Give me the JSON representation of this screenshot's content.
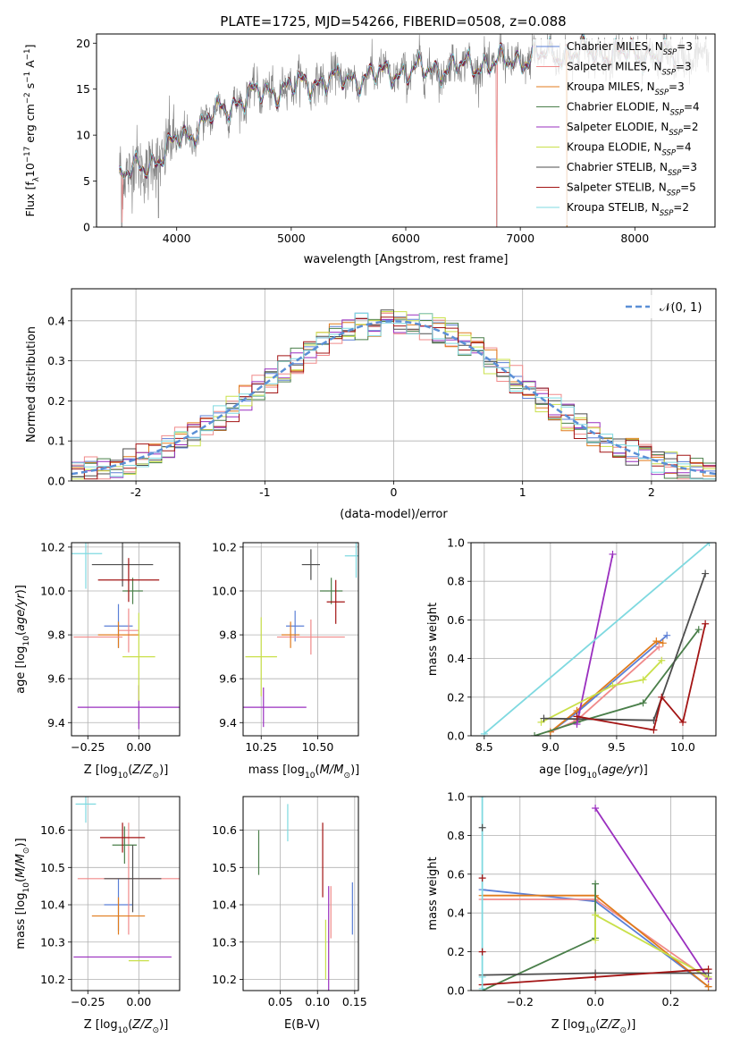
{
  "figure": {
    "title": "PLATE=1725, MJD=54266, FIBERID=0508, z=0.088"
  },
  "colors": {
    "Chabrier MILES": "#5b7fd6",
    "Salpeter MILES": "#f08a8a",
    "Kroupa MILES": "#e07b1c",
    "Chabrier ELODIE": "#4a7f4a",
    "Salpeter ELODIE": "#9a2fbf",
    "Kroupa ELODIE": "#c9e04a",
    "Chabrier STELIB": "#4d4d4d",
    "Salpeter STELIB": "#a31414",
    "Kroupa STELIB": "#7fd9e0",
    "gauss": "#5b8fd6"
  },
  "chart_data": [
    {
      "id": "spectrum",
      "type": "line",
      "title": "PLATE=1725, MJD=54266, FIBERID=0508, z=0.088",
      "xlabel": "wavelength [Angstrom, rest frame]",
      "ylabel": "Flux [f_λ 10^-17 erg cm^-2 s^-1 A^-1]",
      "xlim": [
        3300,
        8700
      ],
      "ylim": [
        0,
        21
      ],
      "xticks": [
        4000,
        5000,
        6000,
        7000,
        8000
      ],
      "yticks": [
        0,
        5,
        10,
        15,
        20
      ],
      "legend_position": "top-right",
      "legend": [
        {
          "name": "Chabrier MILES",
          "nssp": "3"
        },
        {
          "name": "Salpeter MILES",
          "nssp": "3"
        },
        {
          "name": "Kroupa MILES",
          "nssp": "3"
        },
        {
          "name": "Chabrier ELODIE",
          "nssp": "4"
        },
        {
          "name": "Salpeter ELODIE",
          "nssp": "2"
        },
        {
          "name": "Kroupa ELODIE",
          "nssp": "4"
        },
        {
          "name": "Chabrier STELIB",
          "nssp": "3"
        },
        {
          "name": "Salpeter STELIB",
          "nssp": "5"
        },
        {
          "name": "Kroupa STELIB",
          "nssp": "2"
        }
      ],
      "continuum": {
        "x": [
          3500,
          3700,
          3900,
          4000,
          4100,
          4300,
          4500,
          4700,
          4900,
          5100,
          5300,
          5500,
          5700,
          5900,
          6100,
          6300,
          6500,
          6700,
          6900,
          7100,
          7300,
          7500,
          7700,
          7900,
          8100,
          8300
        ],
        "y": [
          5.5,
          6.5,
          8.0,
          9.5,
          10.0,
          12.0,
          13.5,
          14.5,
          15.0,
          15.5,
          16.0,
          16.0,
          16.5,
          16.8,
          17.0,
          17.2,
          17.5,
          17.8,
          18.0,
          18.5,
          18.8,
          19.0,
          19.0,
          18.8,
          18.7,
          18.5
        ]
      },
      "model_range": [
        3500,
        8350
      ]
    },
    {
      "id": "residuals",
      "type": "bar",
      "xlabel": "(data-model)/error",
      "ylabel": "Normed distribution",
      "xlim": [
        -2.5,
        2.5
      ],
      "ylim": [
        0,
        0.48
      ],
      "xticks": [
        -2,
        -1,
        0,
        1,
        2
      ],
      "yticks": [
        0.0,
        0.1,
        0.2,
        0.3,
        0.4
      ],
      "bin_width": 0.1,
      "legend": "𝒩(0, 1)",
      "legend_position": "top-right",
      "gaussian": {
        "mean": 0,
        "sigma": 1
      }
    },
    {
      "id": "age-Z",
      "type": "scatter",
      "xlabel": "Z [log10(Z/Z⊙)]",
      "ylabel": "age  [log10(age/yr)]",
      "xlim": [
        -0.33,
        0.2
      ],
      "ylim": [
        9.34,
        10.22
      ],
      "xticks": [
        -0.25,
        0.0
      ],
      "xticklabels": [
        "−0.25",
        "0.00"
      ],
      "yticks": [
        9.4,
        9.6,
        9.8,
        10.0,
        10.2
      ],
      "points": [
        {
          "series": "Chabrier MILES",
          "x": -0.1,
          "y": 9.84,
          "xerr": 0.07,
          "yerr": 0.1
        },
        {
          "series": "Salpeter MILES",
          "x": -0.05,
          "y": 9.82,
          "xerr": 0.05,
          "yerr": 0.1
        },
        {
          "series": "Kroupa MILES",
          "x": -0.1,
          "y": 9.8,
          "xerr": 0.1,
          "yerr": 0.06
        },
        {
          "series": "Chabrier ELODIE",
          "x": -0.03,
          "y": 10.0,
          "xerr": 0.05,
          "yerr": 0.06
        },
        {
          "series": "Salpeter ELODIE",
          "x": 0.0,
          "y": 9.47,
          "xerr": 0.3,
          "yerr": 0.1
        },
        {
          "series": "Kroupa ELODIE",
          "x": 0.0,
          "y": 9.7,
          "xerr": 0.08,
          "yerr": 0.2
        },
        {
          "series": "Chabrier STELIB",
          "x": -0.08,
          "y": 10.12,
          "xerr": 0.15,
          "yerr": 0.1
        },
        {
          "series": "Salpeter STELIB",
          "x": -0.05,
          "y": 10.05,
          "xerr": 0.15,
          "yerr": 0.1
        },
        {
          "series": "Kroupa STELIB",
          "x": -0.26,
          "y": 10.17,
          "xerr": 0.08,
          "yerr": 0.16
        },
        {
          "series": "Salpeter MILES",
          "x": -0.2,
          "y": 9.79,
          "xerr": 0.12,
          "yerr": 0.0
        }
      ]
    },
    {
      "id": "age-mass",
      "type": "scatter",
      "xlabel": "mass [log10(M/M⊙)]",
      "ylabel": "",
      "xlim": [
        10.17,
        10.68
      ],
      "ylim": [
        9.34,
        10.22
      ],
      "xticks": [
        10.25,
        10.5
      ],
      "xticklabels": [
        "10.25",
        "10.50"
      ],
      "yticks": [
        9.4,
        9.6,
        9.8,
        10.0,
        10.2
      ],
      "points": [
        {
          "series": "Chabrier MILES",
          "x": 10.4,
          "y": 9.84,
          "xerr": 0.04,
          "yerr": 0.07
        },
        {
          "series": "Salpeter MILES",
          "x": 10.47,
          "y": 9.79,
          "xerr": 0.15,
          "yerr": 0.08
        },
        {
          "series": "Kroupa MILES",
          "x": 10.38,
          "y": 9.8,
          "xerr": 0.04,
          "yerr": 0.06
        },
        {
          "series": "Chabrier ELODIE",
          "x": 10.56,
          "y": 10.0,
          "xerr": 0.05,
          "yerr": 0.06
        },
        {
          "series": "Salpeter ELODIE",
          "x": 10.26,
          "y": 9.47,
          "xerr": 0.19,
          "yerr": 0.09
        },
        {
          "series": "Kroupa ELODIE",
          "x": 10.25,
          "y": 9.7,
          "xerr": 0.07,
          "yerr": 0.18
        },
        {
          "series": "Chabrier STELIB",
          "x": 10.47,
          "y": 10.12,
          "xerr": 0.04,
          "yerr": 0.07
        },
        {
          "series": "Salpeter STELIB",
          "x": 10.58,
          "y": 9.95,
          "xerr": 0.04,
          "yerr": 0.1
        },
        {
          "series": "Kroupa STELIB",
          "x": 10.67,
          "y": 10.16,
          "xerr": 0.05,
          "yerr": 0.1
        }
      ]
    },
    {
      "id": "massweight-age",
      "type": "line",
      "xlabel": "age  [log10(age/yr)]",
      "ylabel": "mass weight",
      "xlim": [
        8.4,
        10.25
      ],
      "ylim": [
        0,
        1
      ],
      "xticks": [
        8.5,
        9.0,
        9.5,
        10.0
      ],
      "xticklabels": [
        "8.5",
        "9.0",
        "9.5",
        "10.0"
      ],
      "yticks": [
        0.0,
        0.2,
        0.4,
        0.6,
        0.8,
        1.0
      ],
      "series": [
        {
          "name": "Chabrier MILES",
          "x": [
            9.0,
            9.2,
            9.88
          ],
          "y": [
            0.02,
            0.12,
            0.52
          ]
        },
        {
          "name": "Salpeter MILES",
          "x": [
            9.0,
            9.2,
            9.82
          ],
          "y": [
            0.02,
            0.08,
            0.46
          ]
        },
        {
          "name": "Kroupa MILES",
          "x": [
            9.0,
            9.2,
            9.8,
            9.85
          ],
          "y": [
            0.02,
            0.13,
            0.49,
            0.48
          ]
        },
        {
          "name": "Chabrier ELODIE",
          "x": [
            8.88,
            9.2,
            9.7,
            10.12
          ],
          "y": [
            0.0,
            0.07,
            0.17,
            0.55
          ]
        },
        {
          "name": "Salpeter ELODIE",
          "x": [
            9.2,
            9.47
          ],
          "y": [
            0.06,
            0.94
          ]
        },
        {
          "name": "Kroupa ELODIE",
          "x": [
            8.93,
            9.47,
            9.7,
            9.84
          ],
          "y": [
            0.07,
            0.26,
            0.29,
            0.39
          ]
        },
        {
          "name": "Chabrier STELIB",
          "x": [
            8.95,
            9.78,
            10.17
          ],
          "y": [
            0.09,
            0.08,
            0.84
          ]
        },
        {
          "name": "Salpeter STELIB",
          "x": [
            9.2,
            9.78,
            9.84,
            10.0,
            10.17
          ],
          "y": [
            0.1,
            0.03,
            0.2,
            0.07,
            0.58
          ]
        },
        {
          "name": "Kroupa STELIB",
          "x": [
            8.5,
            10.2
          ],
          "y": [
            0.01,
            1.0
          ]
        }
      ]
    },
    {
      "id": "mass-Z",
      "type": "scatter",
      "xlabel": "Z [log10(Z/Z⊙)]",
      "ylabel": "mass [log10(M/M⊙)]",
      "xlim": [
        -0.33,
        0.2
      ],
      "ylim": [
        10.17,
        10.69
      ],
      "xticks": [
        -0.25,
        0.0
      ],
      "xticklabels": [
        "−0.25",
        "0.00"
      ],
      "yticks": [
        10.2,
        10.3,
        10.4,
        10.5,
        10.6
      ],
      "points": [
        {
          "series": "Chabrier MILES",
          "x": -0.1,
          "y": 10.4,
          "xerr": 0.07,
          "yerr": 0.07
        },
        {
          "series": "Salpeter MILES",
          "x": -0.05,
          "y": 10.47,
          "xerr": 0.25,
          "yerr": 0.15
        },
        {
          "series": "Kroupa MILES",
          "x": -0.1,
          "y": 10.37,
          "xerr": 0.13,
          "yerr": 0.05
        },
        {
          "series": "Chabrier ELODIE",
          "x": -0.07,
          "y": 10.56,
          "xerr": 0.06,
          "yerr": 0.05
        },
        {
          "series": "Salpeter ELODIE",
          "x": -0.08,
          "y": 10.26,
          "xerr": 0.24,
          "yerr": 0.0
        },
        {
          "series": "Kroupa ELODIE",
          "x": 0.0,
          "y": 10.25,
          "xerr": 0.05,
          "yerr": 0.0
        },
        {
          "series": "Chabrier STELIB",
          "x": -0.03,
          "y": 10.47,
          "xerr": 0.14,
          "yerr": 0.09
        },
        {
          "series": "Salpeter STELIB",
          "x": -0.08,
          "y": 10.58,
          "xerr": 0.11,
          "yerr": 0.04
        },
        {
          "series": "Kroupa STELIB",
          "x": -0.26,
          "y": 10.67,
          "xerr": 0.05,
          "yerr": 0.05
        }
      ]
    },
    {
      "id": "mass-ebv",
      "type": "scatter",
      "xlabel": "E(B-V)",
      "ylabel": "",
      "xlim": [
        0.0,
        0.155
      ],
      "ylim": [
        10.17,
        10.69
      ],
      "xticks": [
        0.05,
        0.1,
        0.15
      ],
      "xticklabels": [
        "0.05",
        "0.10",
        "0.15"
      ],
      "yticks": [
        10.2,
        10.3,
        10.4,
        10.5,
        10.6
      ],
      "points": [
        {
          "series": "Chabrier ELODIE",
          "x": 0.021,
          "y": 10.54,
          "xerr": 0.0,
          "yerr": 0.06
        },
        {
          "series": "Kroupa STELIB",
          "x": 0.06,
          "y": 10.62,
          "xerr": 0.0,
          "yerr": 0.05
        },
        {
          "series": "Salpeter STELIB",
          "x": 0.107,
          "y": 10.52,
          "xerr": 0.0,
          "yerr": 0.1
        },
        {
          "series": "Kroupa ELODIE",
          "x": 0.111,
          "y": 10.28,
          "xerr": 0.0,
          "yerr": 0.08
        },
        {
          "series": "Salpeter ELODIE",
          "x": 0.115,
          "y": 10.3,
          "xerr": 0.0,
          "yerr": 0.15
        },
        {
          "series": "Salpeter MILES",
          "x": 0.118,
          "y": 10.38,
          "xerr": 0.0,
          "yerr": 0.07
        },
        {
          "series": "Chabrier MILES",
          "x": 0.147,
          "y": 10.39,
          "xerr": 0.0,
          "yerr": 0.07
        }
      ]
    },
    {
      "id": "massweight-Z",
      "type": "line",
      "xlabel": "Z [log10(Z/Z⊙)]",
      "ylabel": "mass weight",
      "xlim": [
        -0.33,
        0.32
      ],
      "ylim": [
        0,
        1
      ],
      "xticks": [
        -0.2,
        0.0,
        0.2
      ],
      "xticklabels": [
        "−0.2",
        "0.0",
        "0.2"
      ],
      "yticks": [
        0.0,
        0.2,
        0.4,
        0.6,
        0.8,
        1.0
      ],
      "series": [
        {
          "name": "Chabrier MILES",
          "x": [
            -0.3,
            0.0,
            0.3
          ],
          "y": [
            0.52,
            0.46,
            0.02
          ]
        },
        {
          "name": "Salpeter MILES",
          "x": [
            -0.3,
            0.0,
            0.3
          ],
          "y": [
            0.47,
            0.47,
            0.06
          ]
        },
        {
          "name": "Kroupa MILES",
          "x": [
            -0.3,
            0.0,
            0.3
          ],
          "y": [
            0.49,
            0.49,
            0.02
          ]
        },
        {
          "name": "Chabrier ELODIE",
          "x": [
            -0.3,
            0.0,
            0.0
          ],
          "y": [
            0.0,
            0.27,
            0.55
          ]
        },
        {
          "name": "Salpeter ELODIE",
          "x": [
            0.0,
            0.3
          ],
          "y": [
            0.94,
            0.06
          ]
        },
        {
          "name": "Kroupa ELODIE",
          "x": [
            0.0,
            0.0,
            0.3
          ],
          "y": [
            0.26,
            0.39,
            0.07
          ]
        },
        {
          "name": "Chabrier STELIB",
          "x": [
            -0.3,
            0.0,
            0.3
          ],
          "y": [
            0.08,
            0.09,
            0.09
          ]
        },
        {
          "name": "Salpeter STELIB",
          "x": [
            -0.3,
            0.0,
            0.3
          ],
          "y": [
            0.03,
            0.07,
            0.11
          ]
        },
        {
          "name": "Kroupa STELIB",
          "x": [
            -0.3,
            -0.3
          ],
          "y": [
            0.01,
            1.0
          ]
        }
      ],
      "vertical_marks": [
        {
          "series": "Chabrier STELIB",
          "x": -0.3,
          "y": 0.84
        },
        {
          "series": "Salpeter STELIB",
          "x": -0.3,
          "y": 0.58
        },
        {
          "series": "Salpeter STELIB",
          "x": -0.3,
          "y": 0.2
        },
        {
          "series": "Kroupa STELIB",
          "x": -0.3,
          "y": 0.07
        }
      ]
    }
  ]
}
